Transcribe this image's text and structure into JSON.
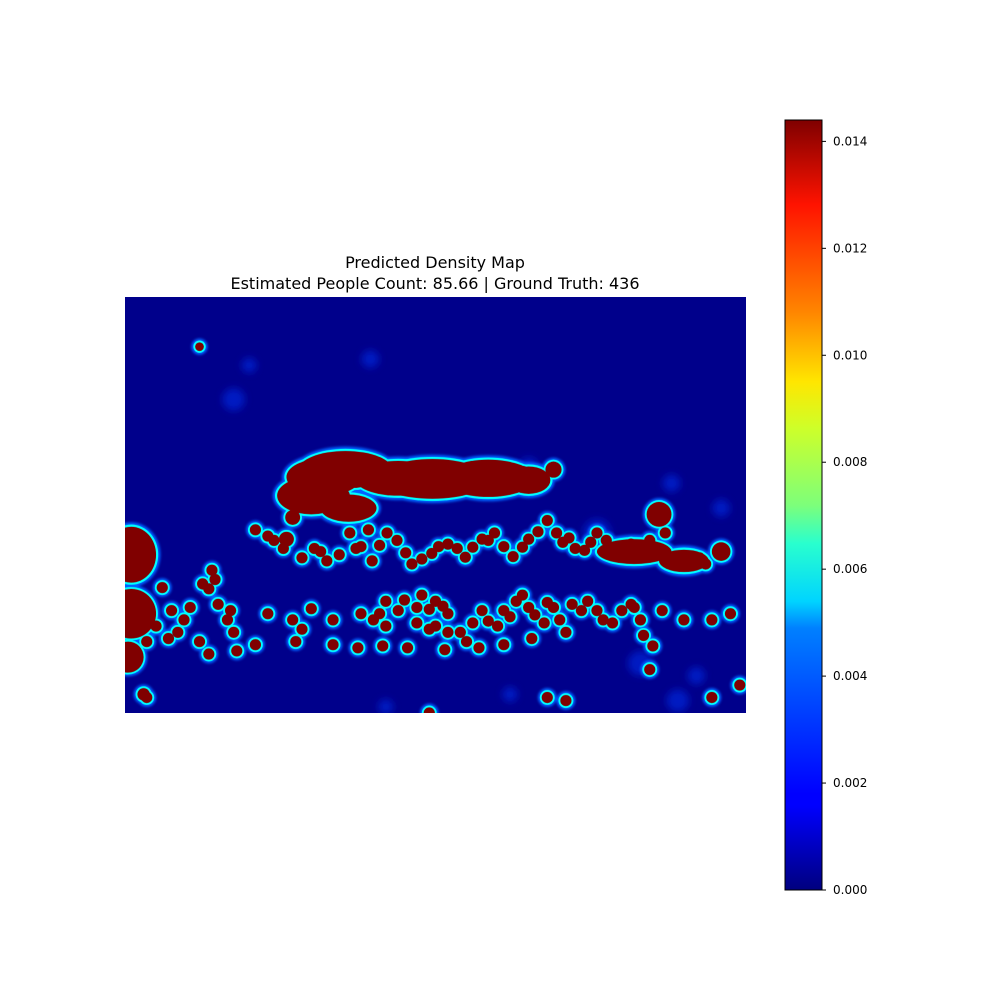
{
  "chart_data": {
    "type": "heatmap",
    "title": "Predicted Density Map",
    "subtitle": "Estimated People Count: 85.66 | Ground Truth: 436",
    "colormap": "jet",
    "axes_visible": false,
    "colorbar": {
      "orientation": "vertical",
      "placement": "right",
      "min": 0.0,
      "max": 0.0144,
      "ticks": [
        0.0,
        0.002,
        0.004,
        0.006,
        0.008,
        0.01,
        0.012,
        0.014
      ],
      "tick_labels": [
        "0.000",
        "0.002",
        "0.004",
        "0.006",
        "0.008",
        "0.010",
        "0.012",
        "0.014"
      ]
    },
    "palette": {
      "background": "#00008b",
      "saturated": "#800000",
      "halo_mid": "#00ffff",
      "halo_outer": "#0060ff",
      "glow": "#0020d0",
      "faint": "#0010b0"
    },
    "map": {
      "width": 1000,
      "height": 670,
      "clusters": [
        [
          320,
          290,
          60,
          30
        ],
        [
          300,
          320,
          55,
          30
        ],
        [
          355,
          278,
          75,
          30
        ],
        [
          440,
          292,
          70,
          28
        ],
        [
          495,
          293,
          90,
          32
        ],
        [
          585,
          292,
          75,
          30
        ],
        [
          650,
          295,
          35,
          22
        ],
        [
          360,
          340,
          45,
          22
        ],
        [
          820,
          410,
          60,
          20
        ],
        [
          900,
          425,
          40,
          18
        ],
        [
          10,
          415,
          40,
          45
        ]
      ],
      "blobs": [
        [
          120,
          80,
          7
        ],
        [
          10,
          510,
          40
        ],
        [
          30,
          640,
          10
        ],
        [
          5,
          580,
          25
        ],
        [
          5,
          530,
          15
        ],
        [
          860,
          350,
          20
        ],
        [
          960,
          410,
          15
        ],
        [
          460,
          280,
          14
        ],
        [
          560,
          278,
          14
        ],
        [
          640,
          285,
          13
        ],
        [
          690,
          278,
          13
        ],
        [
          305,
          405,
          9
        ],
        [
          350,
          320,
          12
        ],
        [
          270,
          355,
          12
        ],
        [
          260,
          390,
          12
        ],
        [
          210,
          375,
          9
        ],
        [
          230,
          385,
          9
        ],
        [
          240,
          392,
          9
        ],
        [
          255,
          405,
          9
        ],
        [
          285,
          420,
          9
        ],
        [
          315,
          410,
          9
        ],
        [
          325,
          425,
          9
        ],
        [
          345,
          415,
          9
        ],
        [
          372,
          405,
          9
        ],
        [
          362,
          380,
          9
        ],
        [
          380,
          402,
          9
        ],
        [
          392,
          375,
          9
        ],
        [
          398,
          425,
          9
        ],
        [
          410,
          400,
          9
        ],
        [
          422,
          380,
          9
        ],
        [
          438,
          392,
          9
        ],
        [
          452,
          412,
          9
        ],
        [
          462,
          430,
          9
        ],
        [
          478,
          422,
          9
        ],
        [
          494,
          413,
          9
        ],
        [
          505,
          402,
          9
        ],
        [
          520,
          398,
          9
        ],
        [
          535,
          405,
          9
        ],
        [
          548,
          419,
          9
        ],
        [
          560,
          403,
          9
        ],
        [
          575,
          390,
          9
        ],
        [
          585,
          392,
          9
        ],
        [
          595,
          380,
          9
        ],
        [
          610,
          402,
          9
        ],
        [
          625,
          418,
          9
        ],
        [
          640,
          403,
          9
        ],
        [
          650,
          390,
          9
        ],
        [
          665,
          378,
          9
        ],
        [
          680,
          360,
          9
        ],
        [
          695,
          380,
          9
        ],
        [
          705,
          395,
          9
        ],
        [
          715,
          388,
          9
        ],
        [
          725,
          405,
          9
        ],
        [
          740,
          408,
          9
        ],
        [
          750,
          395,
          9
        ],
        [
          760,
          380,
          9
        ],
        [
          775,
          392,
          9
        ],
        [
          790,
          410,
          9
        ],
        [
          800,
          405,
          9
        ],
        [
          815,
          398,
          9
        ],
        [
          830,
          408,
          9
        ],
        [
          845,
          392,
          9
        ],
        [
          870,
          380,
          9
        ],
        [
          890,
          420,
          9
        ],
        [
          910,
          432,
          9
        ],
        [
          925,
          420,
          9
        ],
        [
          935,
          430,
          9
        ],
        [
          60,
          468,
          9
        ],
        [
          75,
          505,
          9
        ],
        [
          50,
          530,
          9
        ],
        [
          35,
          555,
          9
        ],
        [
          70,
          550,
          9
        ],
        [
          125,
          462,
          9
        ],
        [
          135,
          470,
          9
        ],
        [
          140,
          440,
          9
        ],
        [
          145,
          455,
          9
        ],
        [
          170,
          505,
          9
        ],
        [
          150,
          495,
          9
        ],
        [
          165,
          520,
          9
        ],
        [
          175,
          540,
          9
        ],
        [
          180,
          570,
          9
        ],
        [
          230,
          510,
          9
        ],
        [
          270,
          520,
          9
        ],
        [
          285,
          535,
          9
        ],
        [
          300,
          502,
          9
        ],
        [
          335,
          520,
          9
        ],
        [
          380,
          510,
          9
        ],
        [
          400,
          520,
          9
        ],
        [
          410,
          510,
          9
        ],
        [
          420,
          490,
          9
        ],
        [
          420,
          530,
          9
        ],
        [
          440,
          505,
          9
        ],
        [
          450,
          488,
          9
        ],
        [
          470,
          500,
          9
        ],
        [
          478,
          480,
          9
        ],
        [
          490,
          503,
          9
        ],
        [
          500,
          490,
          9
        ],
        [
          512,
          498,
          9
        ],
        [
          520,
          510,
          9
        ],
        [
          490,
          535,
          9
        ],
        [
          470,
          525,
          9
        ],
        [
          500,
          530,
          9
        ],
        [
          520,
          540,
          9
        ],
        [
          540,
          540,
          9
        ],
        [
          550,
          555,
          9
        ],
        [
          560,
          525,
          9
        ],
        [
          575,
          505,
          9
        ],
        [
          585,
          522,
          9
        ],
        [
          600,
          530,
          9
        ],
        [
          610,
          505,
          9
        ],
        [
          620,
          515,
          9
        ],
        [
          630,
          490,
          9
        ],
        [
          640,
          480,
          9
        ],
        [
          650,
          500,
          9
        ],
        [
          660,
          512,
          9
        ],
        [
          675,
          525,
          9
        ],
        [
          680,
          492,
          9
        ],
        [
          690,
          500,
          9
        ],
        [
          700,
          520,
          9
        ],
        [
          710,
          540,
          9
        ],
        [
          720,
          495,
          9
        ],
        [
          735,
          505,
          9
        ],
        [
          745,
          490,
          9
        ],
        [
          760,
          505,
          9
        ],
        [
          770,
          520,
          9
        ],
        [
          785,
          525,
          9
        ],
        [
          800,
          505,
          9
        ],
        [
          815,
          495,
          9
        ],
        [
          830,
          520,
          9
        ],
        [
          835,
          545,
          9
        ],
        [
          850,
          562,
          9
        ],
        [
          820,
          500,
          9
        ],
        [
          865,
          505,
          9
        ],
        [
          900,
          520,
          9
        ],
        [
          945,
          520,
          9
        ],
        [
          975,
          510,
          9
        ],
        [
          655,
          550,
          9
        ],
        [
          610,
          560,
          9
        ],
        [
          570,
          565,
          9
        ],
        [
          515,
          568,
          9
        ],
        [
          455,
          565,
          9
        ],
        [
          415,
          562,
          9
        ],
        [
          375,
          565,
          9
        ],
        [
          335,
          560,
          9
        ],
        [
          275,
          555,
          9
        ],
        [
          210,
          560,
          9
        ],
        [
          135,
          575,
          9
        ],
        [
          120,
          555,
          9
        ],
        [
          95,
          520,
          9
        ],
        [
          105,
          500,
          9
        ],
        [
          85,
          540,
          9
        ],
        [
          35,
          645,
          9
        ],
        [
          680,
          645,
          9
        ],
        [
          710,
          650,
          9
        ],
        [
          845,
          600,
          9
        ],
        [
          945,
          645,
          9
        ],
        [
          990,
          625,
          9
        ],
        [
          490,
          670,
          9
        ]
      ],
      "glows": [
        [
          395,
          100,
          14
        ],
        [
          175,
          165,
          18
        ],
        [
          650,
          275,
          16
        ],
        [
          760,
          380,
          22
        ],
        [
          830,
          590,
          20
        ],
        [
          890,
          650,
          18
        ],
        [
          920,
          610,
          14
        ],
        [
          420,
          660,
          12
        ],
        [
          620,
          640,
          12
        ],
        [
          200,
          110,
          12
        ],
        [
          880,
          300,
          14
        ],
        [
          960,
          340,
          14
        ]
      ]
    }
  }
}
